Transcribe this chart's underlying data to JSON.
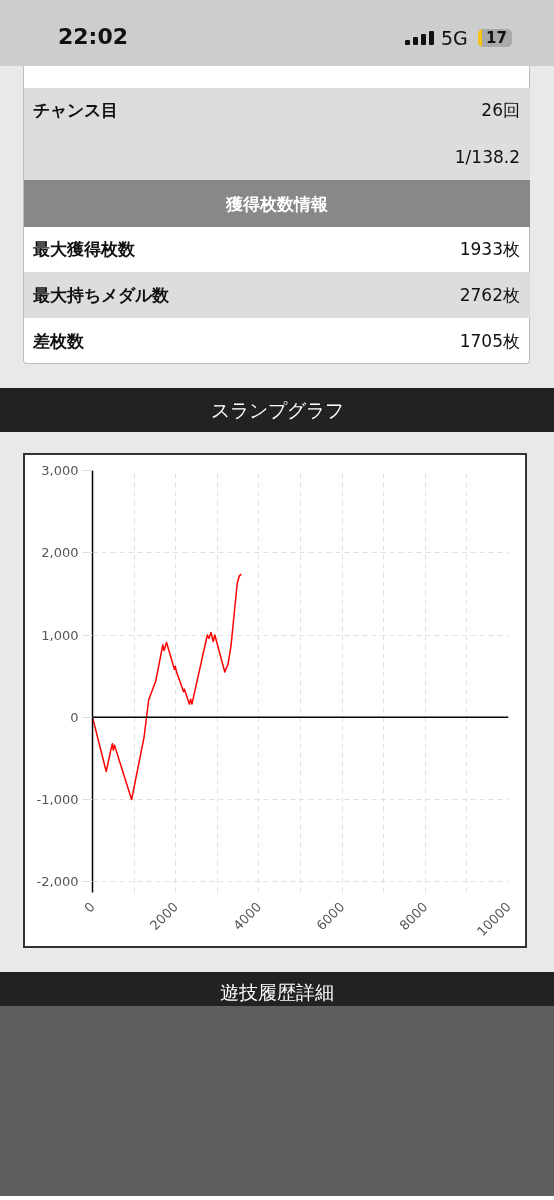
{
  "chart_data": {
    "type": "line",
    "title": "スランプグラフ",
    "x": [
      0,
      330,
      440,
      480,
      500,
      530,
      560,
      940,
      1240,
      1350,
      1520,
      1690,
      1720,
      1780,
      1970,
      1990,
      2020,
      2190,
      2210,
      2330,
      2360,
      2390,
      2760,
      2800,
      2850,
      2900,
      2940,
      3180,
      3260,
      3330,
      3410,
      3480,
      3530,
      3580
    ],
    "series": [
      {
        "color": "#ff0000",
        "values": [
          0,
          -660,
          -400,
          -320,
          -400,
          -340,
          -390,
          -1000,
          -240,
          210,
          440,
          880,
          810,
          910,
          580,
          620,
          550,
          310,
          340,
          160,
          220,
          160,
          1000,
          960,
          1030,
          920,
          1000,
          550,
          650,
          870,
          1280,
          1630,
          1720,
          1740
        ]
      }
    ],
    "xlim": [
      0,
      10000
    ],
    "ylim": [
      -2130,
      3000
    ],
    "xticks": [
      0,
      {
        "value": 1000,
        "label": null
      },
      2000,
      {
        "value": 3000,
        "label": null
      },
      4000,
      {
        "value": 5000,
        "label": null
      },
      6000,
      {
        "value": 7000,
        "label": null
      },
      8000,
      {
        "value": 9000,
        "label": null
      },
      10000
    ],
    "yticks": [
      {
        "value": -2000,
        "label": "-2,000"
      },
      {
        "value": -1000,
        "label": "-1,000"
      },
      0,
      {
        "value": 1000,
        "label": "1,000"
      },
      {
        "value": 2000,
        "label": "2,000"
      },
      {
        "value": 3000,
        "label": "3,000"
      }
    ],
    "grid": true,
    "ref_lines": [
      {
        "axis": "y",
        "value": 0,
        "color": "#000000"
      }
    ],
    "annotations": [
      "22:02",
      "5G",
      "17",
      "チャンス目",
      "26回",
      "1/138.2",
      "獲得枚数情報",
      "最大獲得枚数",
      "1933枚",
      "最大持ちメダル数",
      "2762枚",
      "差枚数",
      "1705枚",
      "遊技履歴詳細"
    ]
  }
}
